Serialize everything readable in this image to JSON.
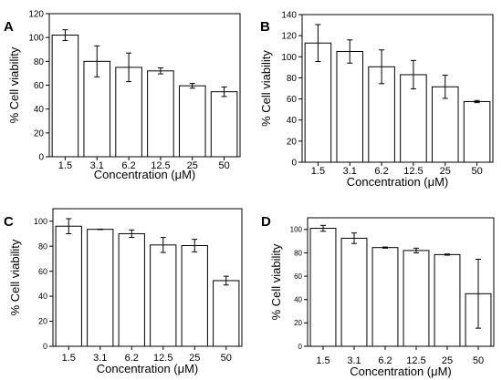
{
  "chart_data": [
    {
      "panel": "A",
      "type": "bar",
      "categories": [
        "1.5",
        "3.1",
        "6.2",
        "12.5",
        "25",
        "50"
      ],
      "values": [
        102,
        80,
        75,
        72,
        59.5,
        54.5
      ],
      "errors": [
        4.5,
        13,
        12,
        2.5,
        2,
        4
      ],
      "xlabel": "Concentration (μM)",
      "ylabel": "% Cell viability",
      "ylim": [
        0,
        120
      ],
      "yticks": [
        0,
        20,
        40,
        60,
        80,
        100,
        120
      ],
      "bar_color": "#ffffff",
      "grid": false
    },
    {
      "panel": "B",
      "type": "bar",
      "categories": [
        "1.5",
        "3.1",
        "6.2",
        "12.5",
        "25",
        "50"
      ],
      "values": [
        113,
        105,
        90.5,
        83,
        71.5,
        57.5
      ],
      "errors": [
        17.5,
        11,
        16,
        13.5,
        11,
        1
      ],
      "xlabel": "Concentration (μM)",
      "ylabel": "% Cell viability",
      "ylim": [
        0,
        140
      ],
      "yticks": [
        0,
        20,
        40,
        60,
        80,
        100,
        120,
        140
      ],
      "bar_color": "#ffffff",
      "grid": false
    },
    {
      "panel": "C",
      "type": "bar",
      "categories": [
        "1.5",
        "3.1",
        "6.2",
        "12.5",
        "25",
        "50"
      ],
      "values": [
        96,
        93.5,
        90,
        81,
        80.5,
        52.5
      ],
      "errors": [
        6,
        0,
        3,
        6,
        5,
        3.5
      ],
      "xlabel": "Concentration (μM)",
      "ylabel": "% Cell viability",
      "ylim": [
        0,
        110
      ],
      "yticks": [
        0,
        20,
        40,
        60,
        80,
        100
      ],
      "bar_color": "#ffffff",
      "grid": false
    },
    {
      "panel": "D",
      "type": "bar",
      "categories": [
        "1.5",
        "3.1",
        "6.2",
        "12.5",
        "25",
        "50"
      ],
      "values": [
        101,
        92.5,
        84.5,
        82,
        78.5,
        45
      ],
      "errors": [
        2.5,
        4.5,
        0.5,
        2,
        0.5,
        29.5
      ],
      "xlabel": "Concentration (μM)",
      "ylabel": "% Cell viability",
      "ylim": [
        0,
        110
      ],
      "yticks": [
        0,
        20,
        40,
        60,
        80,
        100
      ],
      "bar_color": "#ffffff",
      "grid": false
    }
  ]
}
